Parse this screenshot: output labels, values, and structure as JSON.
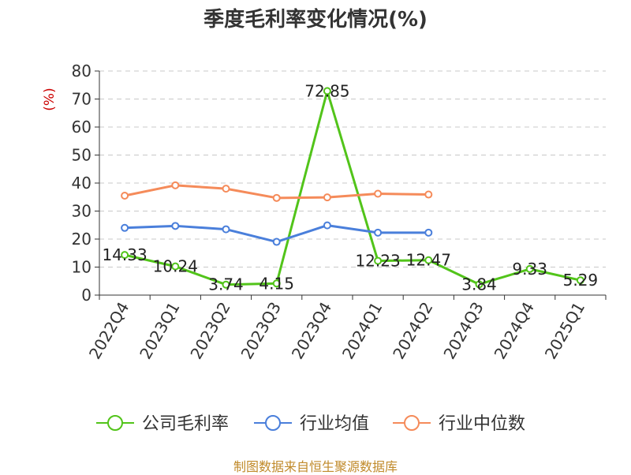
{
  "chart_data": {
    "type": "line",
    "title": "季度毛利率变化情况(%)",
    "ylabel": "(%)",
    "ylim": [
      0,
      80
    ],
    "yticks": [
      0,
      10,
      20,
      30,
      40,
      50,
      60,
      70,
      80
    ],
    "grid": true,
    "legend_position": "bottom",
    "categories": [
      "2022Q4",
      "2023Q1",
      "2023Q2",
      "2023Q3",
      "2023Q4",
      "2024Q1",
      "2024Q2",
      "2024Q3",
      "2024Q4",
      "2025Q1"
    ],
    "series": [
      {
        "name": "公司毛利率",
        "color": "#52c41a",
        "show_labels": true,
        "values": [
          14.33,
          10.24,
          3.74,
          4.15,
          72.85,
          12.23,
          12.47,
          3.84,
          9.33,
          5.29
        ]
      },
      {
        "name": "行业均值",
        "color": "#4a7fdb",
        "show_labels": false,
        "values": [
          24.0,
          24.7,
          23.5,
          19.0,
          24.9,
          22.3,
          22.3,
          null,
          null,
          null
        ]
      },
      {
        "name": "行业中位数",
        "color": "#f58b5a",
        "show_labels": false,
        "values": [
          35.5,
          39.2,
          38.0,
          34.7,
          34.9,
          36.2,
          35.9,
          null,
          null,
          null
        ]
      }
    ]
  },
  "source": "制图数据来自恒生聚源数据库"
}
